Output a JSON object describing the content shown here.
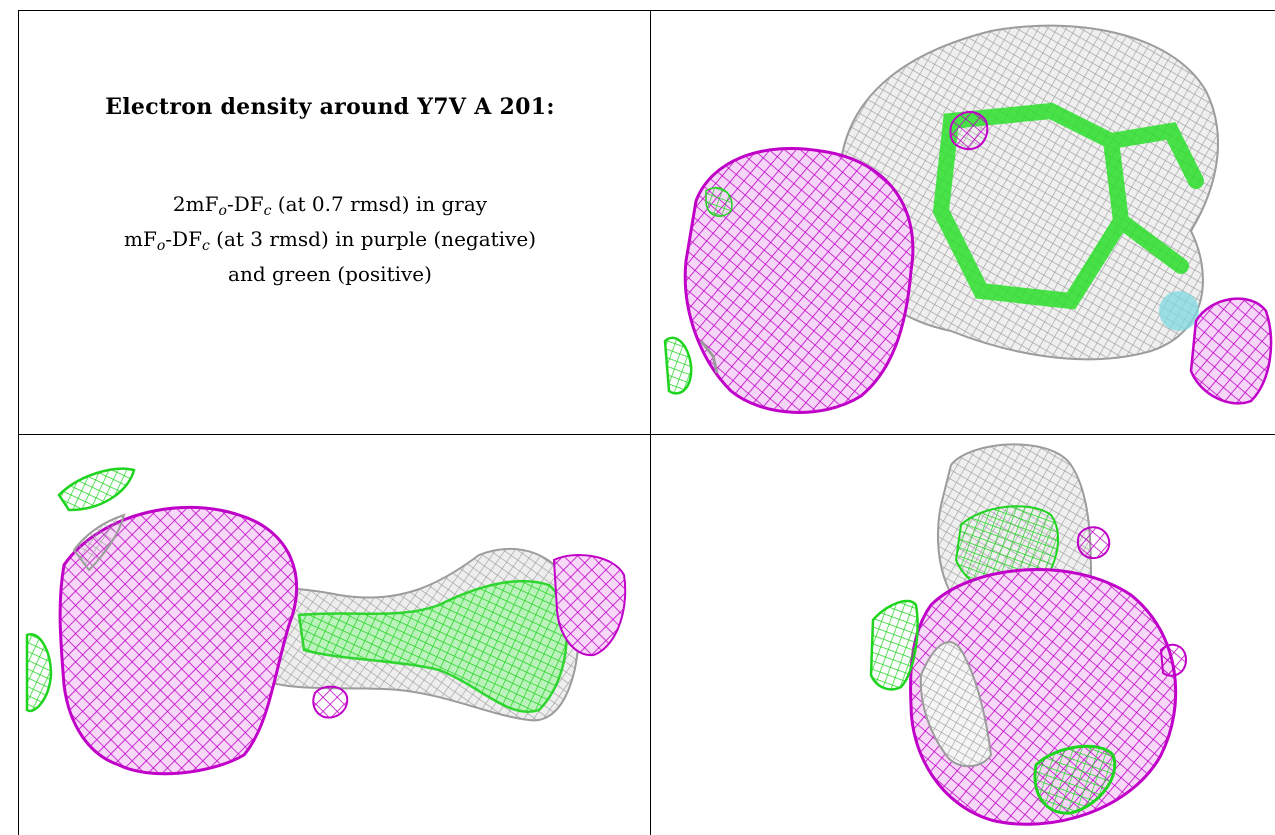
{
  "caption": {
    "heading": "Electron density around Y7V A 201:",
    "line1": {
      "pre": "2mF",
      "s1": "o",
      "mid": "-DF",
      "s2": "c",
      "post": " (at 0.7 rmsd) in gray"
    },
    "line2": {
      "pre": "mF",
      "s1": "o",
      "mid": "-DF",
      "s2": "c",
      "post": " (at 3 rmsd) in purple (negative)"
    },
    "line3": "and green (positive)"
  },
  "colors": {
    "gray_mesh": "#a8a8a8",
    "purple_mesh": "#c000c8",
    "green_mesh": "#22e022",
    "cyan_atom": "#7fd8e0"
  }
}
